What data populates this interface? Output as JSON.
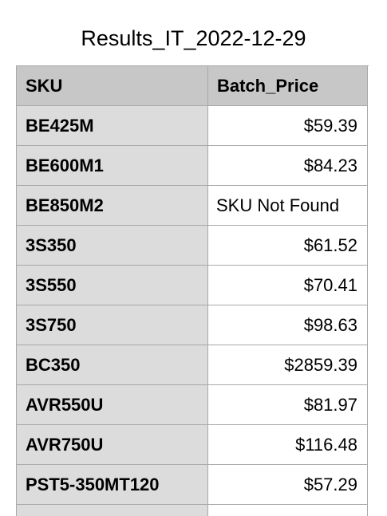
{
  "title": "Results_IT_2022-12-29",
  "table": {
    "headers": [
      "SKU",
      "Batch_Price"
    ],
    "rows": [
      {
        "sku": "BE425M",
        "price": "$59.39"
      },
      {
        "sku": "BE600M1",
        "price": "$84.23"
      },
      {
        "sku": "BE850M2",
        "price": "SKU Not Found"
      },
      {
        "sku": "3S350",
        "price": "$61.52"
      },
      {
        "sku": "3S550",
        "price": "$70.41"
      },
      {
        "sku": "3S750",
        "price": "$98.63"
      },
      {
        "sku": "BC350",
        "price": "$2859.39"
      },
      {
        "sku": "AVR550U",
        "price": "$81.97"
      },
      {
        "sku": "AVR750U",
        "price": "$116.48"
      },
      {
        "sku": "PST5-350MT120",
        "price": "$57.29"
      }
    ]
  }
}
